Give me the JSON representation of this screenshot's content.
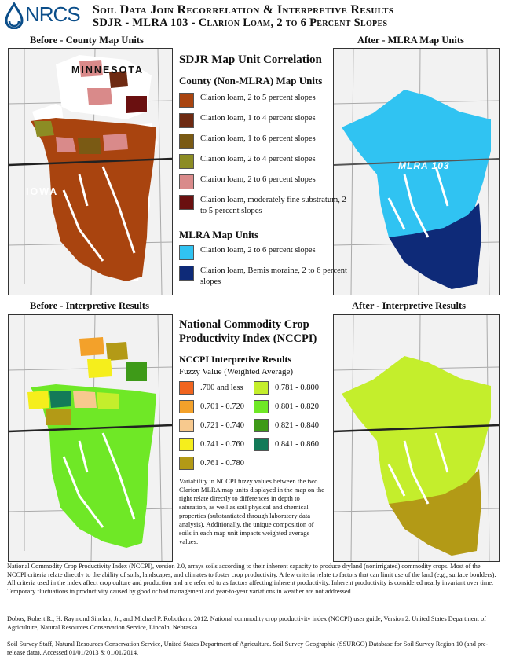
{
  "header": {
    "logo_text": "NRCS",
    "title_line1": "Soil Data Join Recorrelation & Interpretive Results",
    "title_line2": "SDJR - MLRA 103 - Clarion Loam, 2 to 6 Percent Slopes"
  },
  "panels": {
    "before_county": "Before - County Map Units",
    "after_mlra": "After - MLRA Map Units",
    "before_interp": "Before - Interpretive Results",
    "after_interp": "After - Interpretive Results"
  },
  "map_labels": {
    "minnesota": "MINNESOTA",
    "iowa": "IOWA",
    "mlra": "MLRA 103"
  },
  "correlation_legend": {
    "title": "SDJR Map Unit Correlation",
    "county_heading": "County (Non-MLRA) Map Units",
    "county_units": [
      {
        "label": "Clarion loam, 2 to 5 percent slopes",
        "color": "#a9440f"
      },
      {
        "label": "Clarion loam, 1 to 4 percent slopes",
        "color": "#6e2a12"
      },
      {
        "label": "Clarion loam, 1 to 6 percent slopes",
        "color": "#7a5a14"
      },
      {
        "label": "Clarion loam, 2 to 4 percent slopes",
        "color": "#8c8c24"
      },
      {
        "label": "Clarion loam, 2 to 6 percent slopes",
        "color": "#d98a8a"
      },
      {
        "label": "Clarion loam, moderately fine substratum, 2 to 5 percent slopes",
        "color": "#6a1010"
      }
    ],
    "mlra_heading": "MLRA Map Units",
    "mlra_units": [
      {
        "label": "Clarion loam, 2 to 6 percent slopes",
        "color": "#30c3f2"
      },
      {
        "label": "Clarion loam, Bemis moraine, 2 to 6 percent slopes",
        "color": "#0e2a78"
      }
    ]
  },
  "nccpi_legend": {
    "title": "National Commodity Crop Productivity Index (NCCPI)",
    "subtitle": "NCCPI Interpretive Results",
    "fuzzy_heading": "Fuzzy Value (Weighted Average)",
    "classes_left": [
      {
        "label": ".700 and less",
        "color": "#f0641e"
      },
      {
        "label": "0.701 - 0.720",
        "color": "#f3a12a"
      },
      {
        "label": "0.721 - 0.740",
        "color": "#f7c98e"
      },
      {
        "label": "0.741 - 0.760",
        "color": "#f5ee1c"
      },
      {
        "label": "0.761 - 0.780",
        "color": "#b39a16"
      }
    ],
    "classes_right": [
      {
        "label": "0.781 - 0.800",
        "color": "#c4ee2c"
      },
      {
        "label": "0.801 - 0.820",
        "color": "#6fe826"
      },
      {
        "label": "0.821 - 0.840",
        "color": "#3e9a18"
      },
      {
        "label": "0.841 - 0.860",
        "color": "#137a58"
      }
    ],
    "note": "Variability in NCCPI fuzzy values between the two Clarion MLRA map units displayed in the map on the right relate directly to differences in depth to saturation, as well as soil physical and chemical properties (substantiated through laboratory data analysis). Additionally, the unique composition of soils in each map unit impacts weighted average values."
  },
  "footer": {
    "para1": "National Commodity Crop Productivity Index (NCCPI), version 2.0, arrays soils according to their inherent capacity to produce dryland (nonirrigated) commodity crops. Most of the NCCPI criteria relate directly to the ability of soils, landscapes, and climates to foster crop productivity. A few criteria relate to factors that can limit use of the land (e.g., surface boulders). All criteria used in the index affect crop culture and production and are referred to as factors affecting inherent productivity. Inherent productivity is considered nearly invariant over time. Temporary fluctuations in productivity caused by good or bad management and year-to-year variations in weather are not addressed.",
    "para2": "Dobos, Robert R., H. Raymond Sinclair, Jr., and Michael P. Robotham. 2012. National commodity crop productivity index (NCCPI) user guide, Version 2. United States Department of Agriculture, Natural Resources Conservation Service, Lincoln, Nebraska.",
    "para3": "Soil Survey Staff, Natural Resources Conservation Service, United States Department of Agriculture. Soil Survey Geographic (SSURGO) Database for Soil Survey Region 10 (and pre-release data). Accessed 01/01/2013 & 01/01/2014."
  }
}
